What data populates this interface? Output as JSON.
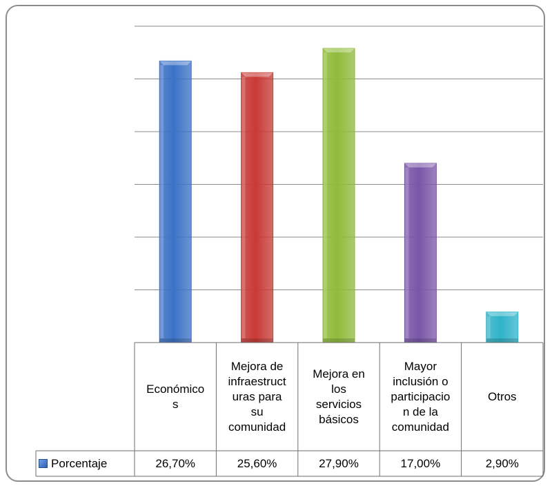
{
  "chart_data": {
    "type": "bar",
    "categories": [
      "Económico s",
      "Mejora de infraestruct uras para su comunidad",
      "Mejora en los servicios básicos",
      "Mayor inclusión o participacio n de la comunidad",
      "Otros"
    ],
    "category_lines": [
      [
        "Económico",
        "s"
      ],
      [
        "Mejora de",
        "infraestruct",
        "uras para",
        "su",
        "comunidad"
      ],
      [
        "Mejora en",
        "los",
        "servicios",
        "básicos"
      ],
      [
        "Mayor",
        "inclusión o",
        "participacio",
        "n de la",
        "comunidad"
      ],
      [
        "Otros"
      ]
    ],
    "series": [
      {
        "name": "Porcentaje",
        "values": [
          26.7,
          25.6,
          27.9,
          17.0,
          2.9
        ]
      }
    ],
    "value_labels": [
      "26,70%",
      "25,60%",
      "27,90%",
      "17,00%",
      "2,90%"
    ],
    "ylim": [
      0,
      30
    ],
    "y_gridline_step": 5,
    "y_axis_labels_shown": false,
    "grid": true,
    "legend": "data-table",
    "bar_colors": [
      "#3c72c6",
      "#c83a36",
      "#8fbb3a",
      "#7a56a8",
      "#2fb3c9"
    ]
  }
}
